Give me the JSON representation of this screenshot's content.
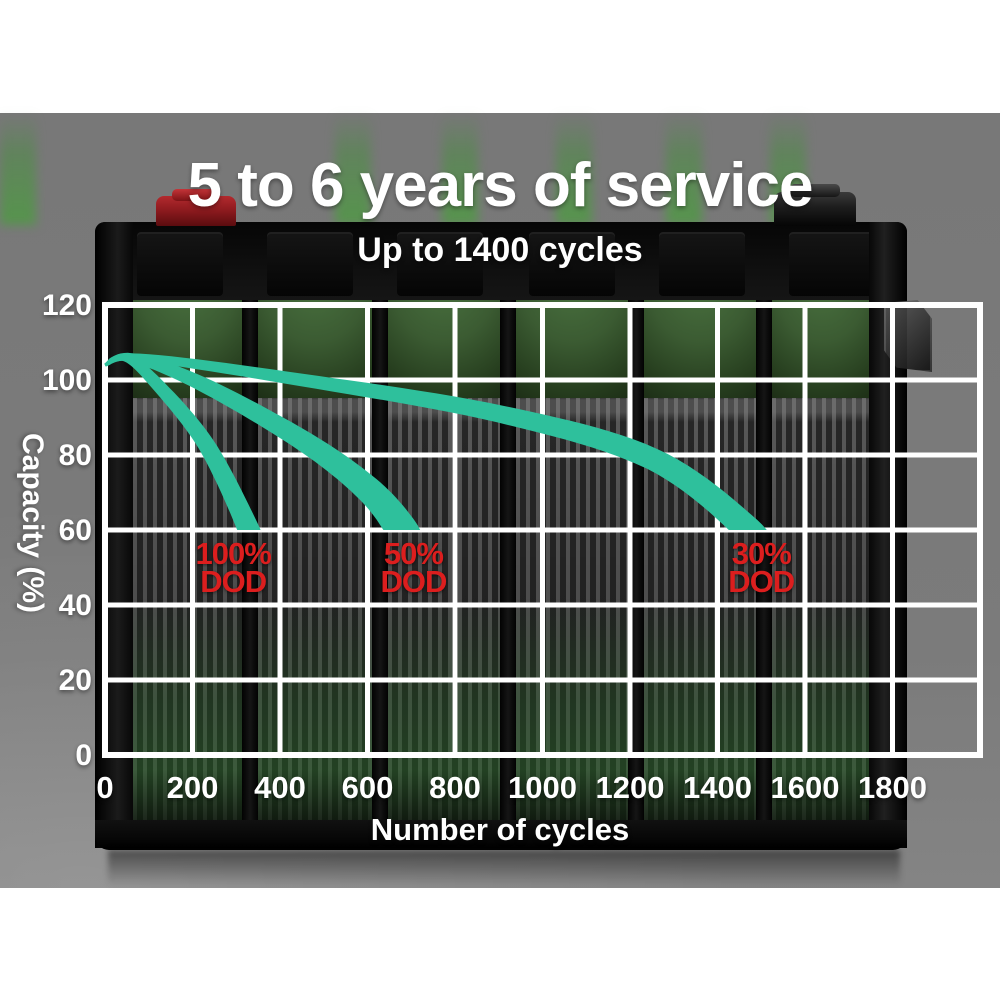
{
  "header": {
    "title": "5 to 6 years of service",
    "subtitle": "Up to 1400 cycles"
  },
  "colors": {
    "curve_teal": "#2ec09c",
    "annotation_red": "#dc1e1e",
    "grid_white": "#ffffff",
    "backdrop_gray": "#7a7a7a",
    "text_white": "#ffffff"
  },
  "chart_data": {
    "type": "line",
    "title": "5 to 6 years of service",
    "subtitle": "Up to 1400 cycles",
    "xlabel": "Number of cycles",
    "ylabel": "Capacity (%)",
    "xlim": [
      0,
      2000
    ],
    "ylim": [
      0,
      120
    ],
    "x_ticks": [
      0,
      200,
      400,
      600,
      800,
      1000,
      1200,
      1400,
      1600,
      1800
    ],
    "y_ticks": [
      0,
      20,
      40,
      60,
      80,
      100,
      120
    ],
    "grid": true,
    "legend": false,
    "series": [
      {
        "name": "100% DOD",
        "description": "capacity fades from ~105% to 60% by ~330 cycles",
        "points": [
          [
            0,
            104
          ],
          [
            45,
            106
          ],
          [
            110,
            100
          ],
          [
            230,
            83
          ],
          [
            325,
            61
          ],
          [
            340,
            54
          ]
        ],
        "tip_width": 26,
        "annotation": {
          "lines": [
            "100%",
            "DOD"
          ],
          "at_cycles": 293,
          "at_capacity": 50
        }
      },
      {
        "name": "50% DOD",
        "description": "capacity fades from ~105% to 60% by ~680 cycles",
        "points": [
          [
            0,
            104
          ],
          [
            60,
            106
          ],
          [
            220,
            99
          ],
          [
            450,
            84
          ],
          [
            600,
            71
          ],
          [
            678,
            60
          ],
          [
            695,
            53
          ]
        ],
        "tip_width": 38,
        "annotation": {
          "lines": [
            "50%",
            "DOD"
          ],
          "at_cycles": 705,
          "at_capacity": 50
        }
      },
      {
        "name": "30% DOD",
        "description": "capacity fades from ~105% to 60% by ~1480 cycles",
        "points": [
          [
            0,
            104
          ],
          [
            80,
            106
          ],
          [
            450,
            100
          ],
          [
            900,
            91
          ],
          [
            1250,
            79
          ],
          [
            1470,
            60
          ],
          [
            1490,
            53
          ]
        ],
        "tip_width": 32,
        "annotation": {
          "lines": [
            "30%",
            "DOD"
          ],
          "at_cycles": 1500,
          "at_capacity": 50
        }
      }
    ]
  }
}
